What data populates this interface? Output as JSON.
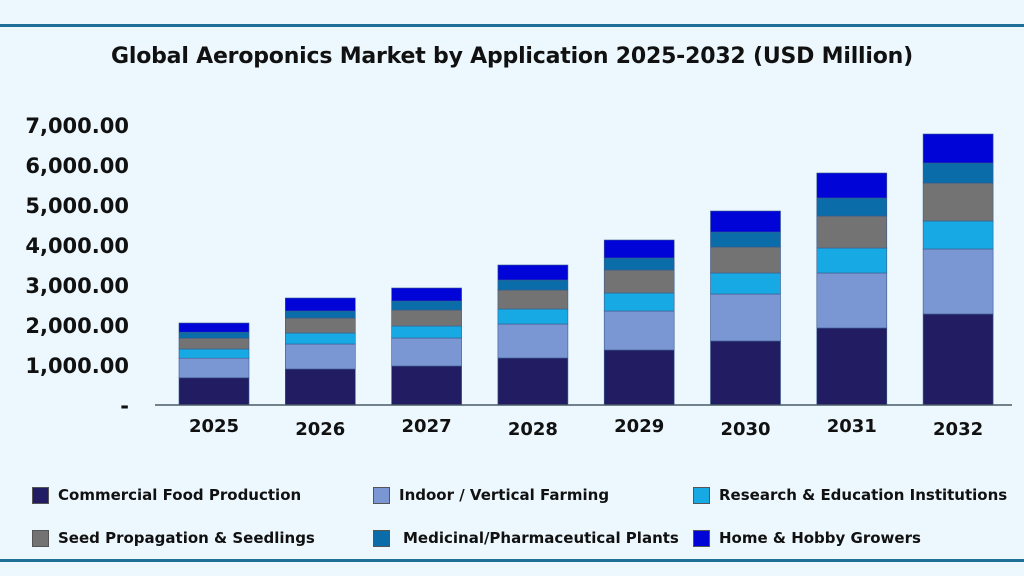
{
  "chart_data": {
    "type": "bar",
    "stacked": true,
    "title": "Global Aeroponics Market by Application 2025-2032 (USD Million)",
    "xlabel": "",
    "ylabel": "",
    "ylim": [
      0,
      7000
    ],
    "yticks": [
      "-",
      "1,000.00",
      "2,000.00",
      "3,000.00",
      "4,000.00",
      "5,000.00",
      "6,000.00",
      "7,000.00"
    ],
    "grid": false,
    "legend_position": "bottom",
    "categories": [
      "2025",
      "2026",
      "2027",
      "2028",
      "2029",
      "2030",
      "2031",
      "2032"
    ],
    "series": [
      {
        "name": "Commercial Food Production",
        "color": "#221d63",
        "values": [
          680,
          900,
          975,
          1175,
          1375,
          1600,
          1925,
          2275
        ]
      },
      {
        "name": "Indoor / Vertical Farming",
        "color": "#7b97d3",
        "values": [
          490,
          625,
          700,
          850,
          975,
          1175,
          1375,
          1625
        ]
      },
      {
        "name": "Research & Education Institutions",
        "color": "#17a9e3",
        "values": [
          230,
          275,
          300,
          375,
          450,
          525,
          625,
          700
        ]
      },
      {
        "name": "Seed Propagation & Seedlings",
        "color": "#737373",
        "values": [
          270,
          375,
          400,
          475,
          575,
          650,
          800,
          950
        ]
      },
      {
        "name": "Medicinal/Pharmaceutical Plants",
        "color": "#0a6daa",
        "values": [
          150,
          175,
          225,
          250,
          300,
          375,
          450,
          500
        ]
      },
      {
        "name": "Home & Hobby Growers",
        "color": "#0004d6",
        "values": [
          230,
          325,
          325,
          375,
          450,
          525,
          625,
          725
        ]
      }
    ]
  }
}
